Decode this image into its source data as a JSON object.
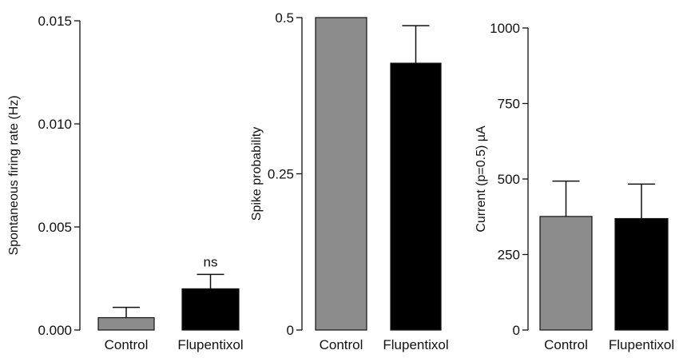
{
  "chart_data": [
    {
      "type": "bar",
      "categories": [
        "Control",
        "Flupentixol"
      ],
      "values": [
        0.0006,
        0.002
      ],
      "errors": [
        0.0005,
        0.0007
      ],
      "ylabel": "Spontaneous firing rate (Hz)",
      "ylim": [
        0,
        0.015
      ],
      "yticks": [
        "0.000",
        "0.005",
        "0.010",
        "0.015"
      ],
      "ytick_values": [
        0,
        0.005,
        0.01,
        0.015
      ],
      "annotations": [
        {
          "category": "Flupentixol",
          "text": "ns"
        }
      ],
      "colors": [
        "#8c8c8c",
        "#000000"
      ]
    },
    {
      "type": "bar",
      "categories": [
        "Control",
        "Flupentixol"
      ],
      "values": [
        0.5,
        0.427
      ],
      "errors": [
        0,
        0.06
      ],
      "ylabel": "Spike probability",
      "ylim": [
        0,
        0.5
      ],
      "yticks": [
        "0",
        "0.25",
        "0.5"
      ],
      "ytick_values": [
        0,
        0.25,
        0.5
      ],
      "colors": [
        "#8c8c8c",
        "#000000"
      ]
    },
    {
      "type": "bar",
      "categories": [
        "Control",
        "Flupentixol"
      ],
      "values": [
        376,
        369
      ],
      "errors": [
        117,
        114
      ],
      "ylabel": "Current (p=0.5) µA",
      "ylim": [
        0,
        1000
      ],
      "yticks": [
        "0",
        "250",
        "500",
        "750",
        "1000"
      ],
      "ytick_values": [
        0,
        250,
        500,
        750,
        1000
      ],
      "colors": [
        "#8c8c8c",
        "#000000"
      ]
    }
  ]
}
